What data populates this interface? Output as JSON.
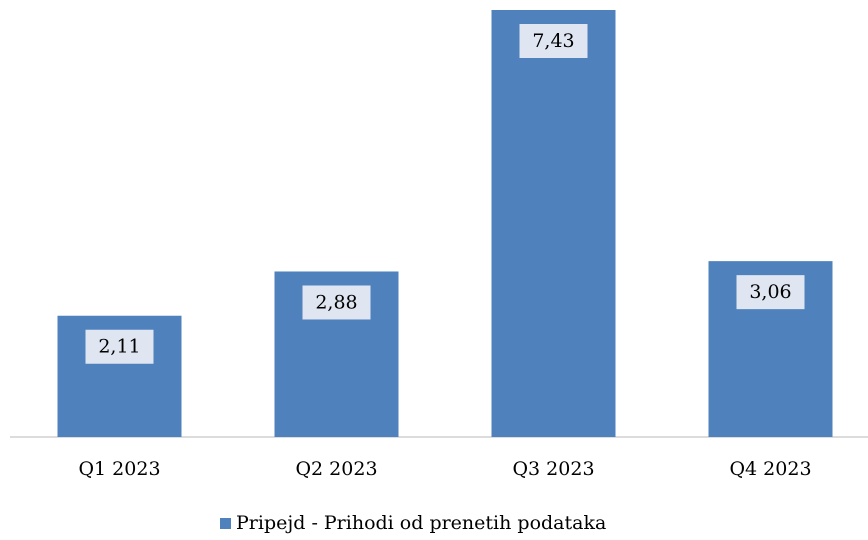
{
  "chart_data": {
    "type": "bar",
    "categories": [
      "Q1 2023",
      "Q2 2023",
      "Q3 2023",
      "Q4 2023"
    ],
    "series": [
      {
        "name": "Pripejd - Prihodi od prenetih podataka",
        "color": "#4f81bd",
        "values": [
          2.11,
          2.88,
          7.43,
          3.06
        ],
        "value_labels": [
          "2,11",
          "2,88",
          "7,43",
          "3,06"
        ]
      }
    ],
    "legend": "bottom"
  }
}
